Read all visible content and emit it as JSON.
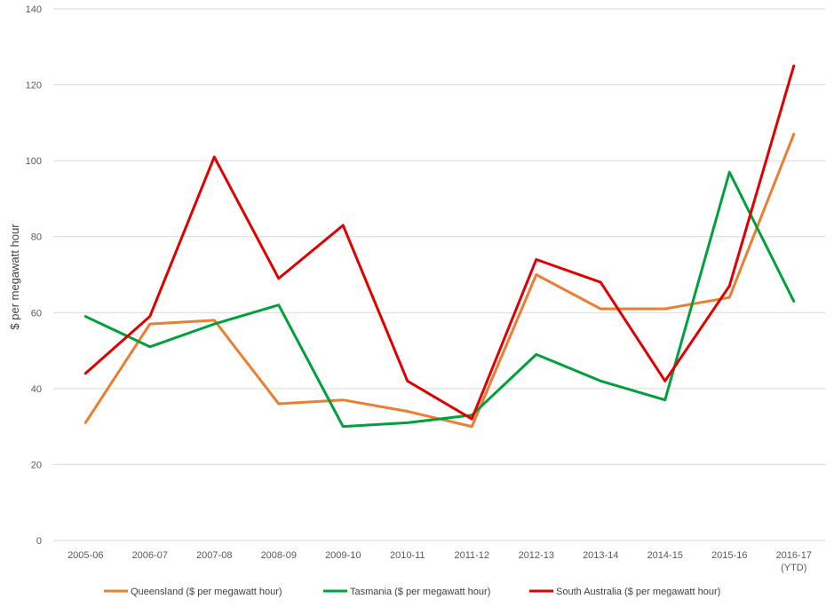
{
  "chart_data": {
    "type": "line",
    "title": "",
    "xlabel": "",
    "ylabel": "$ per megawatt hour",
    "ylim": [
      0,
      140
    ],
    "yticks": [
      0,
      20,
      40,
      60,
      80,
      100,
      120,
      140
    ],
    "grid": true,
    "legend_position": "bottom",
    "categories": [
      [
        "2005-06"
      ],
      [
        "2006-07"
      ],
      [
        "2007-08"
      ],
      [
        "2008-09"
      ],
      [
        "2009-10"
      ],
      [
        "2010-11"
      ],
      [
        "2011-12"
      ],
      [
        "2012-13"
      ],
      [
        "2013-14"
      ],
      [
        "2014-15"
      ],
      [
        "2015-16"
      ],
      [
        "2016-17",
        "(YTD)"
      ]
    ],
    "series": [
      {
        "name": "Queensland ($ per megawatt hour)",
        "color": "#ED7D31",
        "values": [
          31,
          57,
          58,
          36,
          37,
          34,
          30,
          70,
          61,
          61,
          64,
          107
        ]
      },
      {
        "name": "Tasmania ($ per megawatt hour)",
        "color": "#00A03C",
        "values": [
          59,
          51,
          57,
          62,
          30,
          31,
          33,
          49,
          42,
          37,
          97,
          63
        ]
      },
      {
        "name": "South Australia ($ per megawatt hour)",
        "color": "#E00000",
        "values": [
          44,
          59,
          101,
          69,
          83,
          42,
          32,
          74,
          68,
          42,
          67,
          125
        ]
      }
    ]
  }
}
